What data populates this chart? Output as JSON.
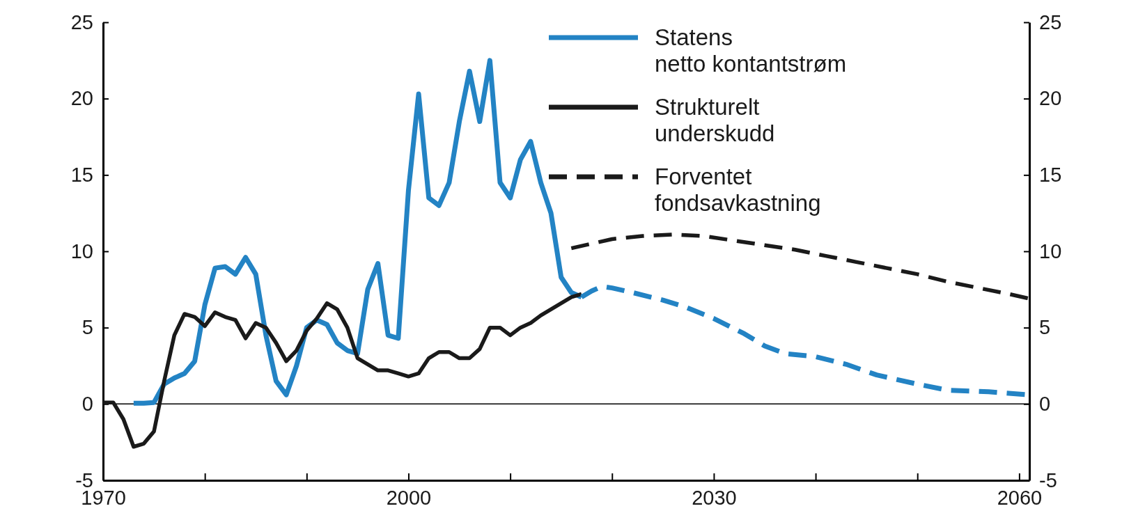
{
  "chart_data": {
    "type": "line",
    "xlim": [
      1970,
      2061
    ],
    "xticks": [
      1970,
      {
        "value": 1980,
        "label": null
      },
      {
        "value": 1990,
        "label": null
      },
      2000,
      {
        "value": 2010,
        "label": null
      },
      {
        "value": 2020,
        "label": null
      },
      2030,
      {
        "value": 2040,
        "label": null
      },
      {
        "value": 2050,
        "label": null
      },
      2060
    ],
    "ylim": [
      -5,
      25
    ],
    "yticks": [
      -5,
      0,
      5,
      10,
      15,
      20,
      25
    ],
    "y2lim": [
      -5,
      25
    ],
    "y2ticks": [
      -5,
      0,
      5,
      10,
      15,
      20,
      25
    ],
    "grid": false,
    "legend": "top right",
    "ref_lines": [
      {
        "axis": "y",
        "value": 0,
        "color": "#000000"
      }
    ],
    "series": [
      {
        "name": "Statens netto kontantstrøm",
        "color": "#2383c4",
        "line_style": "solid",
        "x": [
          1973,
          1974,
          1975,
          1976,
          1977,
          1978,
          1979,
          1980,
          1981,
          1982,
          1983,
          1984,
          1985,
          1986,
          1987,
          1988,
          1989,
          1990,
          1991,
          1992,
          1993,
          1994,
          1995,
          1996,
          1997,
          1998,
          1999,
          2000,
          2001,
          2002,
          2003,
          2004,
          2005,
          2006,
          2007,
          2008,
          2009,
          2010,
          2011,
          2012,
          2013,
          2014,
          2015,
          2016,
          2017
        ],
        "values": [
          0.05,
          0.05,
          0.1,
          1.3,
          1.7,
          2.0,
          2.8,
          6.5,
          8.9,
          9.0,
          8.5,
          9.6,
          8.5,
          4.5,
          1.5,
          0.6,
          2.5,
          5.0,
          5.5,
          5.2,
          4.0,
          3.5,
          3.3,
          7.5,
          9.2,
          4.5,
          4.3,
          14,
          20.3,
          13.5,
          13,
          14.5,
          18.5,
          21.8,
          18.5,
          22.5,
          14.5,
          13.5,
          16,
          17.2,
          14.5,
          12.5,
          8.3,
          7.3,
          7.0
        ]
      },
      {
        "name": "Strukturelt underskudd",
        "color": "#1a1a1a",
        "line_style": "solid",
        "x": [
          1970,
          1971,
          1972,
          1973,
          1974,
          1975,
          1976,
          1977,
          1978,
          1979,
          1980,
          1981,
          1982,
          1983,
          1984,
          1985,
          1986,
          1987,
          1988,
          1989,
          1990,
          1991,
          1992,
          1993,
          1994,
          1995,
          1996,
          1997,
          1998,
          1999,
          2000,
          2001,
          2002,
          2003,
          2004,
          2005,
          2006,
          2007,
          2008,
          2009,
          2010,
          2011,
          2012,
          2013,
          2014,
          2015,
          2016,
          2017
        ],
        "values": [
          0.1,
          0.1,
          -1.0,
          -2.8,
          -2.6,
          -1.8,
          1.5,
          4.5,
          5.9,
          5.7,
          5.1,
          6.0,
          5.7,
          5.5,
          4.3,
          5.3,
          5.0,
          4.0,
          2.8,
          3.5,
          4.8,
          5.6,
          6.6,
          6.2,
          5.0,
          3.0,
          2.6,
          2.2,
          2.2,
          2.0,
          1.8,
          2.0,
          3.0,
          3.4,
          3.4,
          3.0,
          3.0,
          3.6,
          5.0,
          5.0,
          4.5,
          5.0,
          5.3,
          5.8,
          6.2,
          6.6,
          7.0,
          7.2
        ]
      },
      {
        "name": "Forventet fondsavkastning",
        "color": "#1a1a1a",
        "line_style": "dashed",
        "x": [
          2016,
          2018,
          2020,
          2023,
          2026,
          2029,
          2032,
          2035,
          2038,
          2041,
          2044,
          2047,
          2050,
          2053,
          2056,
          2059,
          2061
        ],
        "values": [
          10.2,
          10.5,
          10.8,
          11.0,
          11.1,
          11.0,
          10.7,
          10.4,
          10.1,
          9.7,
          9.3,
          8.9,
          8.5,
          8.0,
          7.6,
          7.2,
          6.9
        ]
      },
      {
        "color": "#2383c4",
        "line_style": "dashed",
        "x": [
          2017,
          2018,
          2019,
          2020,
          2022,
          2025,
          2027,
          2030,
          2033,
          2035,
          2037,
          2040,
          2043,
          2046,
          2050,
          2053,
          2057,
          2061
        ],
        "values": [
          7.0,
          7.4,
          7.7,
          7.6,
          7.3,
          6.8,
          6.4,
          5.6,
          4.6,
          3.8,
          3.3,
          3.1,
          2.6,
          1.9,
          1.3,
          0.9,
          0.8,
          0.6
        ]
      }
    ]
  }
}
